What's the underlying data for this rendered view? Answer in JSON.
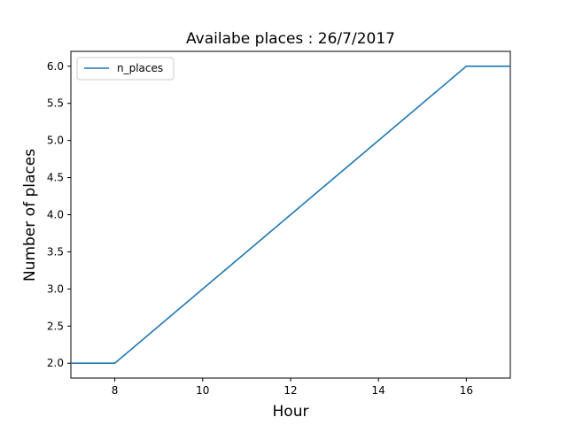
{
  "chart_data": {
    "type": "line",
    "title": "Availabe places : 26/7/2017",
    "xlabel": "Hour",
    "ylabel": "Number of places",
    "xlim": [
      7,
      17
    ],
    "ylim": [
      1.8,
      6.2
    ],
    "xticks": [
      8,
      10,
      12,
      14,
      16
    ],
    "yticks": [
      2.0,
      2.5,
      3.0,
      3.5,
      4.0,
      4.5,
      5.0,
      5.5,
      6.0
    ],
    "xtick_labels": [
      "8",
      "10",
      "12",
      "14",
      "16"
    ],
    "ytick_labels": [
      "2.0",
      "2.5",
      "3.0",
      "3.5",
      "4.0",
      "4.5",
      "5.0",
      "5.5",
      "6.0"
    ],
    "grid": false,
    "legend": {
      "placement": "top-left",
      "entries": [
        "n_places"
      ]
    },
    "colors": {
      "series": "#1f77b4"
    },
    "series": [
      {
        "name": "n_places",
        "x": [
          7,
          8,
          16,
          17
        ],
        "y": [
          2.0,
          2.0,
          6.0,
          6.0
        ]
      }
    ]
  }
}
